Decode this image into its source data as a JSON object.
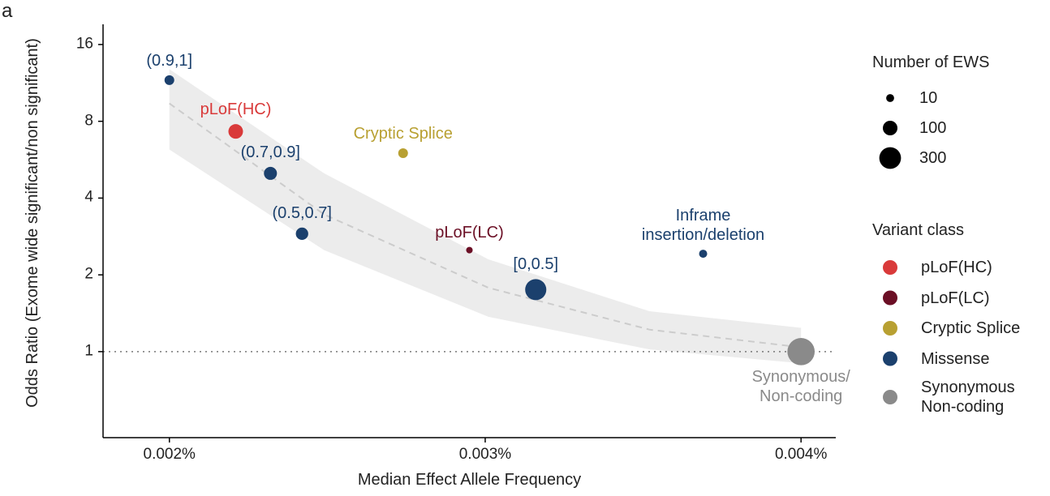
{
  "chart_data": {
    "type": "scatter",
    "panel_label": "a",
    "x_label": "Median Effect Allele Frequency",
    "y_label": "Odds Ratio (Exome wide significant/non significant)",
    "xlim": [
      0.00179,
      0.00411
    ],
    "xticks": [
      {
        "value": 0.002,
        "label": "0.002%"
      },
      {
        "value": 0.003,
        "label": "0.003%"
      },
      {
        "value": 0.004,
        "label": "0.004%"
      }
    ],
    "ylim": [
      0.46,
      19.2
    ],
    "yticks": [
      1,
      2,
      4,
      8,
      16
    ],
    "log_y": true,
    "reference_line": 1,
    "size_legend": {
      "title": "Number of EWS",
      "values": [
        10,
        100,
        300
      ]
    },
    "color_legend_title": "Variant class",
    "trend": {
      "color": "#cccccc",
      "x": [
        0.002,
        0.00249,
        0.00301,
        0.00352,
        0.004
      ],
      "values": [
        9.4,
        3.45,
        1.78,
        1.22,
        1.04
      ],
      "lower": [
        6.2,
        2.5,
        1.37,
        1.02,
        0.9
      ],
      "upper": [
        12.8,
        5.0,
        2.3,
        1.44,
        1.24
      ]
    },
    "series": [
      {
        "name": "pLoF(HC)",
        "color": "#d93a3a",
        "x": [
          0.00221
        ],
        "values": [
          7.3
        ],
        "sizes": [
          100
        ],
        "point_labels": [
          "pLoF(HC)"
        ]
      },
      {
        "name": "pLoF(LC)",
        "color": "#6b0f25",
        "x": [
          0.00295
        ],
        "values": [
          2.5
        ],
        "sizes": [
          3
        ],
        "point_labels": [
          "pLoF(LC)"
        ]
      },
      {
        "name": "Cryptic Splice",
        "color": "#b8a032",
        "x": [
          0.00274
        ],
        "values": [
          6.0
        ],
        "sizes": [
          25
        ],
        "point_labels": [
          "Cryptic Splice"
        ]
      },
      {
        "name": "Missense",
        "color": "#1b406d",
        "x": [
          0.002,
          0.00232,
          0.00242,
          0.00316,
          0.00369
        ],
        "values": [
          11.6,
          5.0,
          2.9,
          1.75,
          2.42
        ],
        "sizes": [
          25,
          70,
          60,
          280,
          11
        ],
        "point_labels": [
          "(0.9,1]",
          "(0.7,0.9]",
          "(0.5,0.7]",
          "[0,0.5]",
          "Inframe\ninsertion/deletion"
        ]
      },
      {
        "name": "Synonymous\nNon-coding",
        "color": "#8a8a8a",
        "x": [
          0.004
        ],
        "values": [
          1
        ],
        "sizes": [
          530
        ],
        "point_labels": [
          "Synonymous/\nNon-coding"
        ]
      }
    ]
  }
}
